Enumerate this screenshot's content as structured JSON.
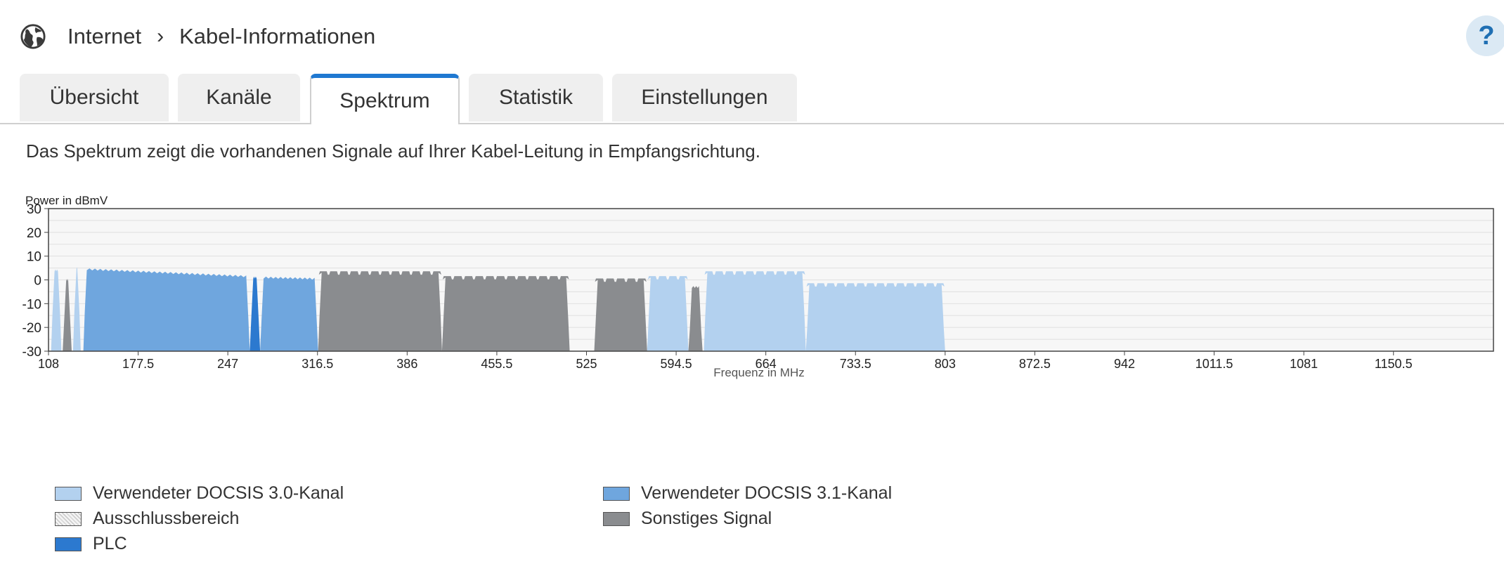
{
  "breadcrumb": {
    "section": "Internet",
    "page": "Kabel-Informationen"
  },
  "help": {
    "label": "?"
  },
  "tabs": [
    {
      "label": "Übersicht",
      "active": false
    },
    {
      "label": "Kanäle",
      "active": false
    },
    {
      "label": "Spektrum",
      "active": true
    },
    {
      "label": "Statistik",
      "active": false
    },
    {
      "label": "Einstellungen",
      "active": false
    }
  ],
  "description": "Das Spektrum zeigt die vorhandenen Signale auf Ihrer Kabel-Leitung in Empfangsrichtung.",
  "colors": {
    "docsis30": "#b3d1ef",
    "docsis31": "#6fa6de",
    "plc": "#2c79cf",
    "other": "#8a8c8f",
    "exclusion": "#e6e6e6",
    "accent": "#1f78d1"
  },
  "chart_data": {
    "type": "area",
    "ylabel": "Power in dBmV",
    "xlabel": "Frequenz in MHz",
    "xlim": [
      108,
      1228
    ],
    "ylim": [
      -30,
      30
    ],
    "x_ticks": [
      108,
      177.5,
      247,
      316.5,
      386,
      455.5,
      525,
      594.5,
      664,
      733.5,
      803,
      872.5,
      942,
      1011.5,
      1081,
      1150.5
    ],
    "x_tick_labels": [
      "108",
      "177.5",
      "247",
      "316.5",
      "386",
      "455.5",
      "525",
      "594.5",
      "664",
      "733.5",
      "803",
      "872.5",
      "942",
      "1011.5",
      "1081",
      "1150.5"
    ],
    "y_ticks": [
      30,
      20,
      10,
      0,
      -10,
      -20,
      -30
    ],
    "y_tick_labels": [
      "30",
      "20",
      "10",
      "0",
      "-10",
      "-20",
      "-30"
    ],
    "grid": true,
    "series": [
      {
        "name": "Verwendeter DOCSIS 3.0-Kanal",
        "kind": "docsis30",
        "segments": [
          {
            "x": [
              110,
              118
            ],
            "y": 4
          },
          {
            "x": [
              127,
              133
            ],
            "y": 5
          },
          {
            "x": [
              572,
              604
            ],
            "y": 1,
            "channel_width": 8
          },
          {
            "x": [
              616,
              695
            ],
            "y": 3,
            "channel_width": 8
          },
          {
            "x": [
              695,
              803
            ],
            "y": -2,
            "channel_width": 8
          }
        ]
      },
      {
        "name": "Verwendeter DOCSIS 3.1-Kanal",
        "kind": "docsis31",
        "segments": [
          {
            "x": [
              135,
              264
            ],
            "y": [
              4.5,
              1.5
            ]
          },
          {
            "x": [
              272,
              317
            ],
            "y": [
              1,
              0.5
            ]
          }
        ]
      },
      {
        "name": "PLC",
        "kind": "plc",
        "segments": [
          {
            "x": [
              264,
              272
            ],
            "y": 1
          }
        ]
      },
      {
        "name": "Sonstiges Signal",
        "kind": "other",
        "segments": [
          {
            "x": [
              119,
              126
            ],
            "y": 0
          },
          {
            "x": [
              317,
              413
            ],
            "y": 3,
            "channel_width": 8
          },
          {
            "x": [
              413,
              512
            ],
            "y": 1,
            "channel_width": 8
          },
          {
            "x": [
              531,
              572
            ],
            "y": 0,
            "channel_width": 8
          },
          {
            "x": [
              604,
              615
            ],
            "y": -3
          }
        ]
      }
    ],
    "legend": [
      {
        "label": "Verwendeter DOCSIS 3.0-Kanal",
        "kind": "docsis30"
      },
      {
        "label": "Verwendeter DOCSIS 3.1-Kanal",
        "kind": "docsis31"
      },
      {
        "label": "Ausschlussbereich",
        "kind": "exclusion"
      },
      {
        "label": "Sonstiges Signal",
        "kind": "other"
      },
      {
        "label": "PLC",
        "kind": "plc"
      }
    ]
  }
}
